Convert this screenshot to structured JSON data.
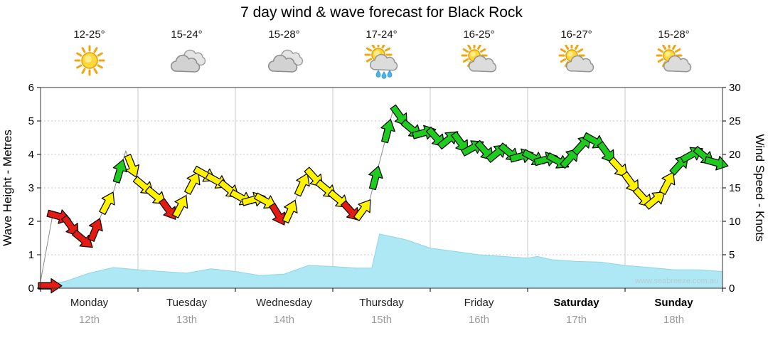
{
  "title": "7 day wind & wave forecast for Black Rock",
  "watermark": "www.seabreeze.com.au",
  "colors": {
    "wind_red": "#E31B12",
    "wind_yellow": "#FFF200",
    "wind_green": "#1FCB1F",
    "arrow_outline": "#000000",
    "wind_line": "#8C8C8C",
    "wave_fill": "#ADE8F4",
    "wave_edge": "#8FD6E6",
    "grid": "#C8C8C8",
    "axis": "#333333",
    "tick_text": "#000000",
    "date_text": "#999999",
    "watermark_text": "#B7CCD4"
  },
  "days": [
    {
      "name": "Monday",
      "date": "12th",
      "temp": "12-25°",
      "icon": "sunny",
      "bold": false
    },
    {
      "name": "Tuesday",
      "date": "13th",
      "temp": "15-24°",
      "icon": "cloudy",
      "bold": false
    },
    {
      "name": "Wednesday",
      "date": "14th",
      "temp": "15-28°",
      "icon": "cloudy",
      "bold": false
    },
    {
      "name": "Thursday",
      "date": "15th",
      "temp": "17-24°",
      "icon": "sun-showers",
      "bold": false
    },
    {
      "name": "Friday",
      "date": "16th",
      "temp": "16-25°",
      "icon": "partly-cloudy",
      "bold": false
    },
    {
      "name": "Saturday",
      "date": "17th",
      "temp": "16-27°",
      "icon": "partly-cloudy",
      "bold": true
    },
    {
      "name": "Sunday",
      "date": "18th",
      "temp": "15-28°",
      "icon": "partly-cloudy",
      "bold": true
    }
  ],
  "chart_data": {
    "type": "area",
    "title": "7 day wind & wave forecast for Black Rock",
    "x_axis": {
      "unit": "day",
      "range": [
        0,
        7
      ],
      "labels": [
        "Monday 12th",
        "Tuesday 13th",
        "Wednesday 14th",
        "Thursday 15th",
        "Friday 16th",
        "Saturday 17th",
        "Sunday 18th"
      ]
    },
    "y_left": {
      "label": "Wave Height - Metres",
      "range": [
        0,
        6
      ],
      "ticks": [
        0,
        1,
        2,
        3,
        4,
        5,
        6
      ]
    },
    "y_right": {
      "label": "Wind Speed - Knots",
      "range": [
        0,
        30
      ],
      "ticks": [
        0,
        5,
        10,
        15,
        20,
        25,
        30
      ]
    },
    "wind_color_rule": {
      "red_below_kn": 12,
      "yellow_below_kn": 18.5,
      "green_from_kn": 18.5
    },
    "legend": "off",
    "grid": "dotted horizontal each metre / 5kn, vertical at day boundaries",
    "series": [
      {
        "name": "Wave Height",
        "unit": "m",
        "type": "area",
        "axis": "left",
        "x": [
          0,
          0.25,
          0.5,
          0.75,
          1.0,
          1.25,
          1.5,
          1.75,
          2.0,
          2.25,
          2.5,
          2.75,
          3.0,
          3.25,
          3.4,
          3.48,
          3.75,
          4.0,
          4.25,
          4.5,
          4.75,
          5.0,
          5.1,
          5.25,
          5.5,
          5.75,
          6.0,
          6.25,
          6.5,
          6.75,
          7.0
        ],
        "values": [
          0.1,
          0.2,
          0.45,
          0.62,
          0.55,
          0.5,
          0.45,
          0.58,
          0.5,
          0.38,
          0.42,
          0.68,
          0.65,
          0.6,
          0.6,
          1.62,
          1.45,
          1.2,
          1.1,
          1.0,
          0.95,
          0.9,
          0.95,
          0.85,
          0.8,
          0.78,
          0.68,
          0.62,
          0.55,
          0.55,
          0.5
        ]
      },
      {
        "name": "Wind Speed",
        "unit": "kn",
        "type": "line",
        "axis": "right",
        "style": "direction-arrows",
        "x": [
          0,
          0.125,
          0.25,
          0.375,
          0.5,
          0.625,
          0.75,
          0.875,
          1,
          1.125,
          1.25,
          1.375,
          1.5,
          1.625,
          1.75,
          1.875,
          2,
          2.125,
          2.25,
          2.375,
          2.5,
          2.625,
          2.75,
          2.875,
          3,
          3.125,
          3.25,
          3.375,
          3.5,
          3.625,
          3.75,
          3.875,
          4,
          4.125,
          4.25,
          4.375,
          4.5,
          4.625,
          4.75,
          4.875,
          5,
          5.125,
          5.25,
          5.375,
          5.5,
          5.625,
          5.75,
          5.875,
          6,
          6.125,
          6.25,
          6.375,
          6.5,
          6.625,
          6.75,
          6.875,
          7
        ],
        "values": [
          1,
          11,
          10.5,
          8,
          6.5,
          11,
          14.5,
          20.5,
          16,
          14.5,
          13,
          10.5,
          14,
          17.5,
          16.5,
          15.5,
          14,
          13,
          13.5,
          12.5,
          9.5,
          13.5,
          17.5,
          15.5,
          14,
          12.5,
          10.5,
          13,
          20,
          27,
          24.5,
          23,
          23.5,
          21.5,
          23,
          20.5,
          21.5,
          19.5,
          21,
          19.5,
          20,
          19,
          19.5,
          18.5,
          20.5,
          22.5,
          21.5,
          19,
          17,
          14.5,
          12.5,
          14,
          17.5,
          19.5,
          20.5,
          19,
          18.5
        ]
      }
    ]
  }
}
